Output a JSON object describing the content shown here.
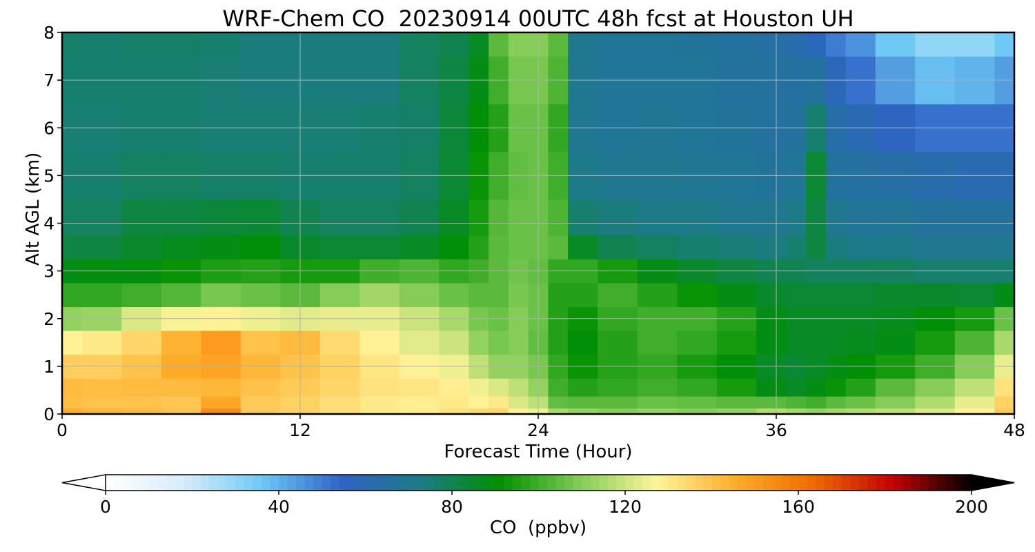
{
  "chart_data": {
    "type": "heatmap",
    "title": "WRF-Chem CO  20230914 00UTC 48h fcst at Houston UH",
    "xlabel": "Forecast Time (Hour)",
    "ylabel": "Alt AGL (km)",
    "xlim": [
      0,
      48
    ],
    "ylim": [
      0,
      8
    ],
    "xticks": [
      0,
      12,
      24,
      36,
      48
    ],
    "yticks": [
      0,
      1,
      2,
      3,
      4,
      5,
      6,
      7,
      8
    ],
    "grid": true,
    "colorbar": {
      "label": "CO  (ppbv)",
      "orientation": "horizontal",
      "range": [
        0,
        200
      ],
      "ticks": [
        0,
        40,
        80,
        120,
        160,
        200
      ],
      "extend": "both",
      "colors": [
        "#ffffff",
        "#d6ecfb",
        "#6cc8f5",
        "#2f63c6",
        "#1c7b86",
        "#009000",
        "#7fcb55",
        "#fff59a",
        "#ffad2a",
        "#ee6a00",
        "#c40000",
        "#000000"
      ]
    },
    "x_hours": [
      0,
      2,
      4,
      6,
      8,
      10,
      12,
      14,
      16,
      18,
      20,
      21,
      22,
      23,
      24,
      25,
      26,
      28,
      30,
      32,
      34,
      36,
      37,
      38,
      39,
      40,
      42,
      44,
      46,
      48
    ],
    "y_km": [
      0,
      0.25,
      0.5,
      1,
      1.5,
      2,
      2.5,
      3,
      3.5,
      4,
      5,
      6,
      7,
      8
    ],
    "co_ppbv": [
      [
        145,
        141,
        142,
        137,
        128,
        112,
        98,
        88,
        82,
        78,
        76,
        75,
        76,
        77
      ],
      [
        143,
        140,
        141,
        137,
        130,
        113,
        98,
        89,
        82,
        78,
        76,
        75,
        76,
        76
      ],
      [
        142,
        140,
        142,
        140,
        135,
        122,
        100,
        89,
        85,
        82,
        78,
        76,
        76,
        77
      ],
      [
        140,
        139,
        142,
        146,
        144,
        126,
        103,
        92,
        87,
        82,
        78,
        76,
        76,
        77
      ],
      [
        155,
        147,
        143,
        148,
        150,
        128,
        108,
        95,
        88,
        83,
        77,
        75,
        75,
        76
      ],
      [
        138,
        138,
        140,
        143,
        140,
        125,
        106,
        96,
        90,
        84,
        77,
        75,
        74,
        74
      ],
      [
        136,
        136,
        138,
        140,
        142,
        123,
        104,
        94,
        85,
        80,
        76,
        75,
        74,
        74
      ],
      [
        133,
        133,
        135,
        136,
        134,
        124,
        110,
        94,
        84,
        78,
        76,
        75,
        74,
        74
      ],
      [
        130,
        130,
        132,
        131,
        128,
        124,
        114,
        100,
        84,
        78,
        76,
        76,
        74,
        74
      ],
      [
        129,
        129,
        131,
        128,
        123,
        120,
        110,
        102,
        86,
        80,
        78,
        77,
        78,
        78
      ],
      [
        132,
        130,
        129,
        125,
        120,
        115,
        106,
        98,
        90,
        86,
        84,
        83,
        82,
        80
      ],
      [
        134,
        128,
        125,
        118,
        112,
        108,
        104,
        100,
        96,
        94,
        92,
        90,
        88,
        86
      ],
      [
        135,
        130,
        122,
        112,
        108,
        106,
        104,
        104,
        104,
        103,
        100,
        96,
        100,
        104
      ],
      [
        128,
        122,
        118,
        112,
        110,
        110,
        108,
        107,
        106,
        106,
        105,
        106,
        108,
        110
      ],
      [
        125,
        118,
        112,
        108,
        105,
        106,
        106,
        105,
        106,
        106,
        106,
        106,
        108,
        110
      ],
      [
        115,
        105,
        100,
        98,
        96,
        96,
        96,
        98,
        104,
        102,
        100,
        98,
        102,
        104
      ],
      [
        112,
        104,
        96,
        92,
        90,
        92,
        96,
        98,
        86,
        76,
        72,
        70,
        70,
        70
      ],
      [
        110,
        104,
        98,
        96,
        96,
        98,
        100,
        94,
        80,
        74,
        70,
        68,
        68,
        68
      ],
      [
        112,
        106,
        100,
        98,
        100,
        100,
        96,
        88,
        78,
        72,
        70,
        69,
        68,
        68
      ],
      [
        110,
        105,
        98,
        94,
        98,
        100,
        92,
        85,
        76,
        72,
        69,
        68,
        68,
        67
      ],
      [
        112,
        104,
        94,
        90,
        94,
        96,
        88,
        82,
        75,
        70,
        68,
        67,
        66,
        66
      ],
      [
        116,
        104,
        88,
        86,
        88,
        88,
        85,
        80,
        74,
        70,
        67,
        66,
        66,
        64
      ],
      [
        114,
        102,
        86,
        84,
        86,
        86,
        84,
        80,
        76,
        72,
        68,
        66,
        65,
        62
      ],
      [
        112,
        100,
        88,
        86,
        86,
        86,
        84,
        78,
        82,
        82,
        84,
        76,
        66,
        58
      ],
      [
        114,
        104,
        92,
        88,
        86,
        86,
        84,
        78,
        74,
        70,
        66,
        63,
        58,
        50
      ],
      [
        116,
        106,
        96,
        90,
        87,
        86,
        84,
        78,
        72,
        68,
        65,
        60,
        52,
        46
      ],
      [
        118,
        110,
        104,
        94,
        88,
        87,
        85,
        78,
        72,
        68,
        64,
        56,
        44,
        36
      ],
      [
        122,
        116,
        110,
        100,
        94,
        90,
        85,
        76,
        70,
        66,
        62,
        52,
        38,
        30
      ],
      [
        128,
        124,
        118,
        110,
        102,
        94,
        84,
        76,
        70,
        66,
        60,
        52,
        40,
        30
      ],
      [
        138,
        136,
        132,
        124,
        115,
        106,
        88,
        76,
        70,
        66,
        60,
        52,
        44,
        36
      ]
    ]
  }
}
